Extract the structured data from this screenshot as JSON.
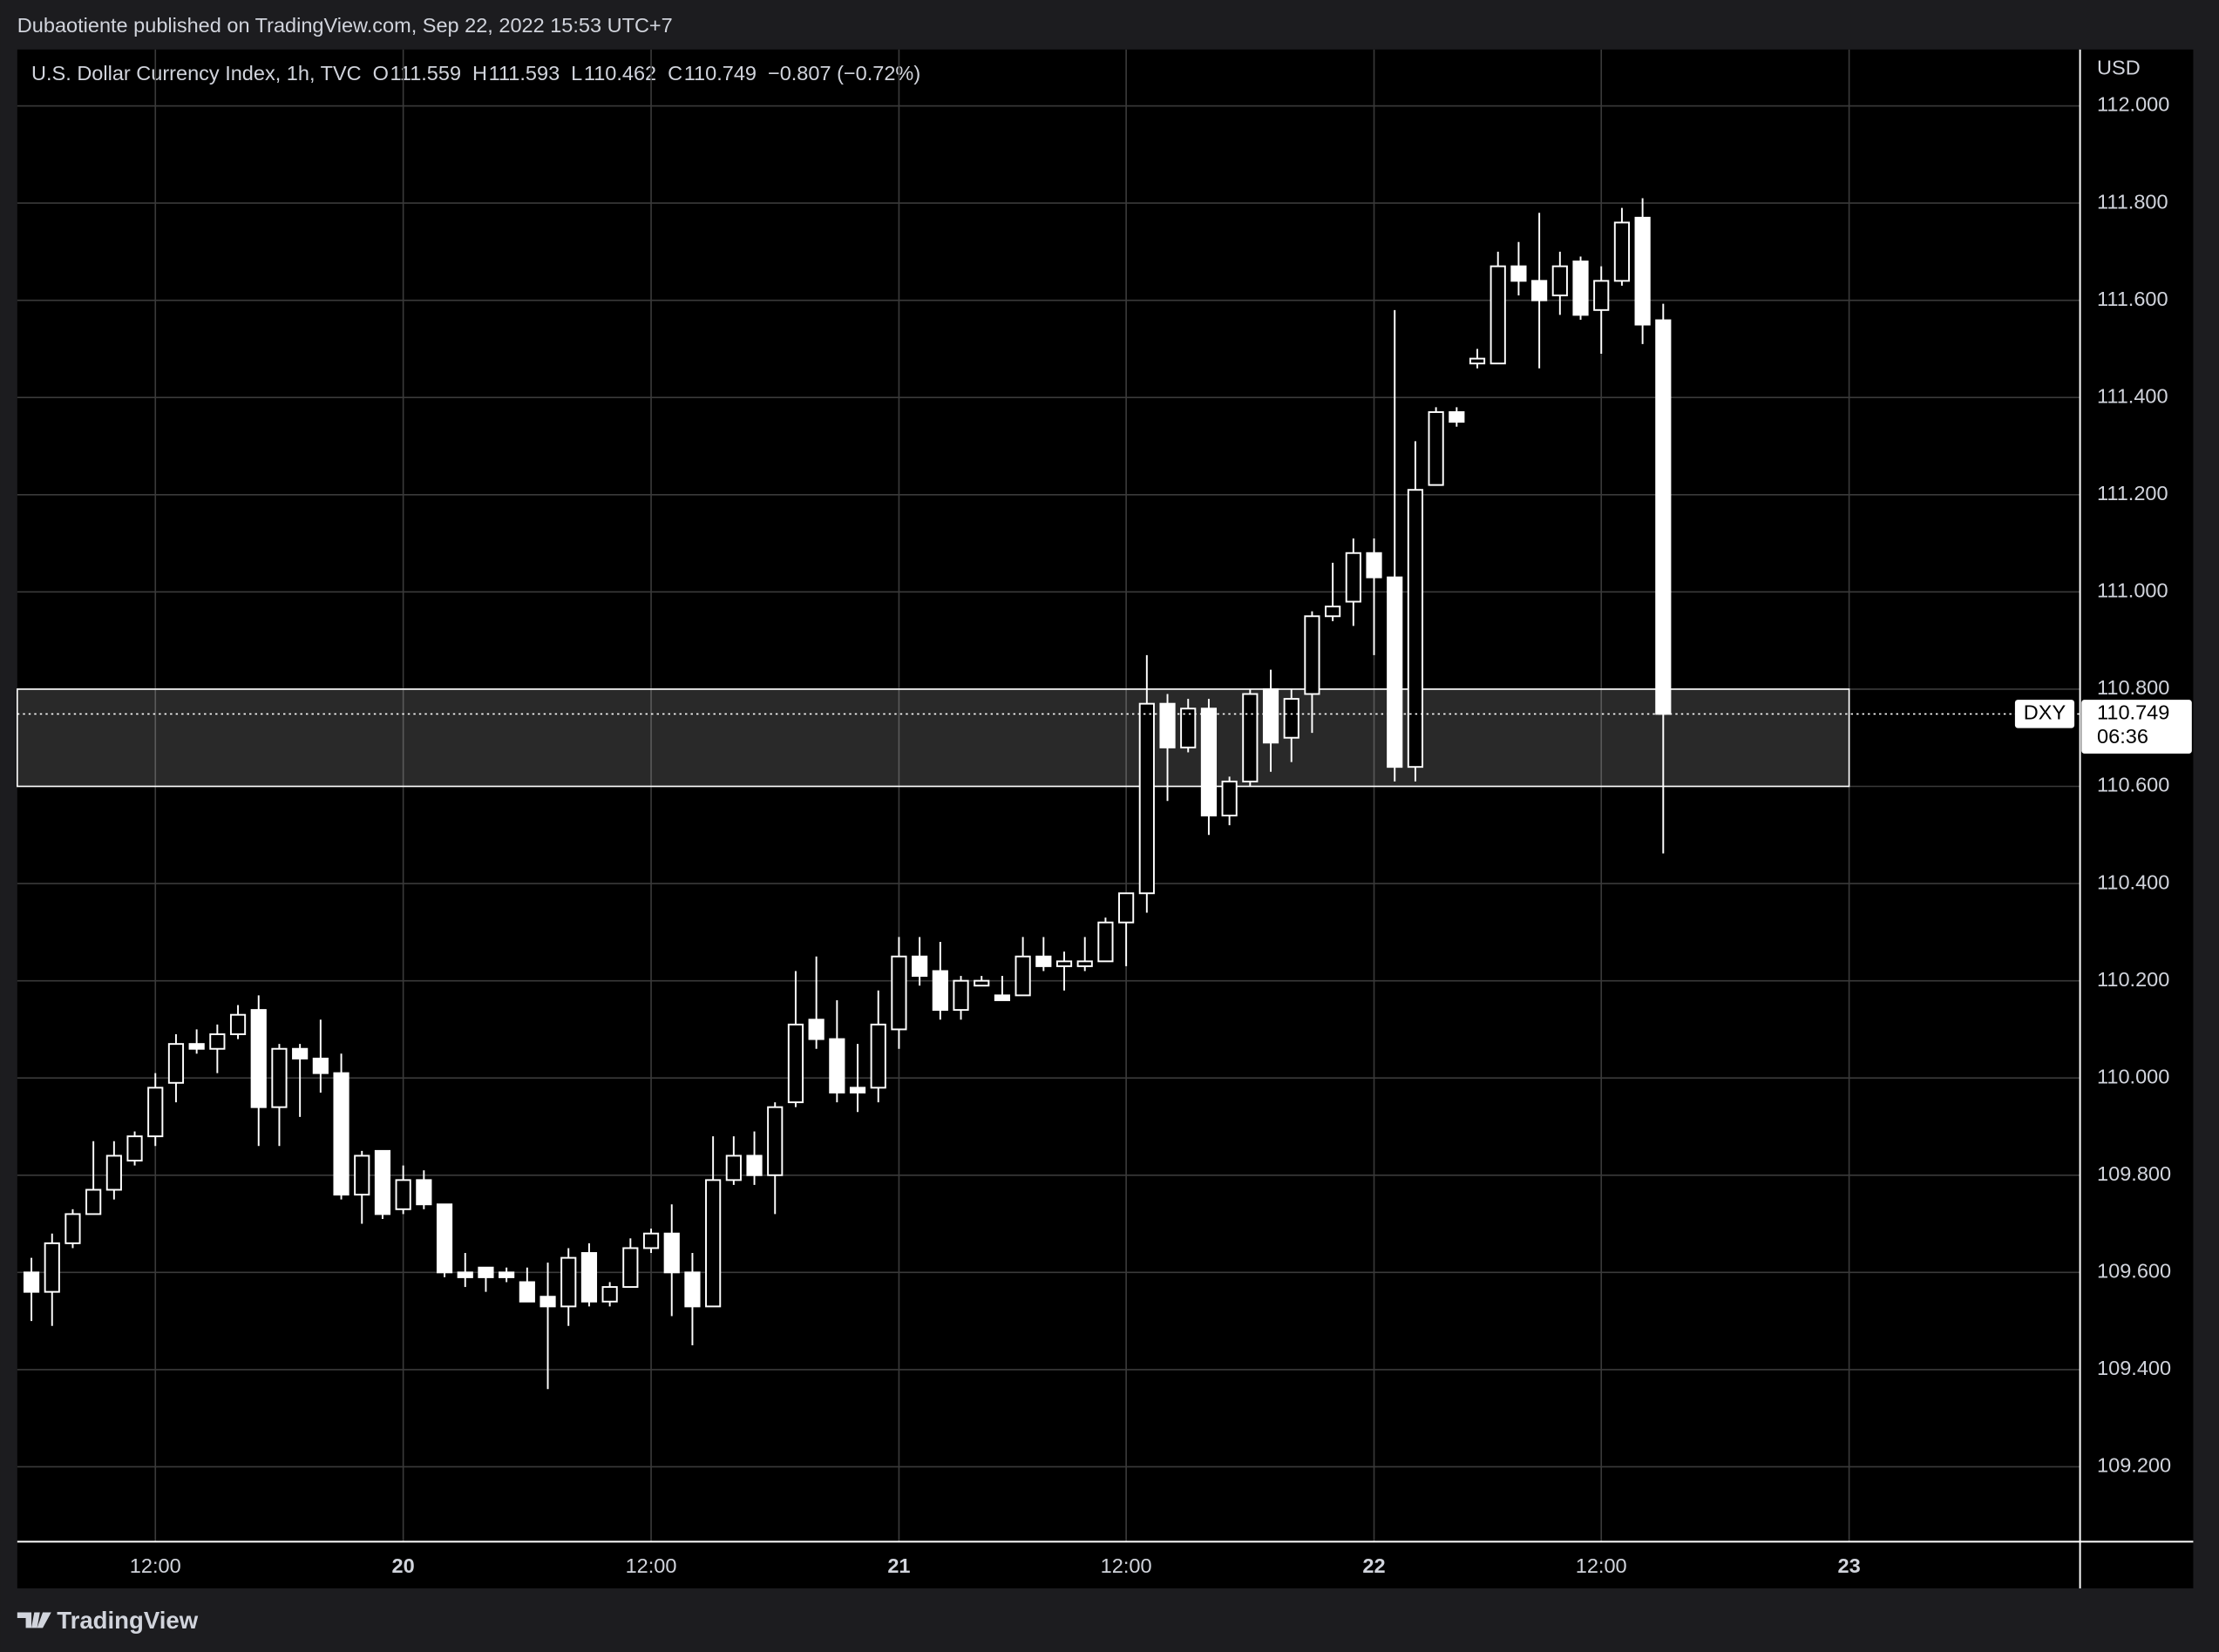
{
  "header": "Dubaotiente published on TradingView.com, Sep 22, 2022 15:53 UTC+7",
  "footer": "TradingView",
  "chart_data": {
    "type": "candlestick",
    "title": "U.S. Dollar Currency Index, 1h, TVC",
    "ohlc_legend": [
      {
        "key": "O",
        "value": "111.559"
      },
      {
        "key": "H",
        "value": "111.593"
      },
      {
        "key": "L",
        "value": "110.462"
      },
      {
        "key": "C",
        "value": "110.749"
      }
    ],
    "change": "−0.807 (−0.72%)",
    "currency": "USD",
    "color": "#ffffff",
    "background": "#000000",
    "grid": true,
    "open": [
      109.6,
      109.56,
      109.66,
      109.72,
      109.77,
      109.83,
      109.88,
      109.99,
      110.07,
      110.06,
      110.09,
      110.14,
      109.94,
      110.06,
      110.04,
      110.01,
      109.76,
      109.85,
      109.73,
      109.79,
      109.74,
      109.6,
      109.61,
      109.6,
      109.58,
      109.55,
      109.53,
      109.64,
      109.54,
      109.57,
      109.65,
      109.68,
      109.6,
      109.53,
      109.79,
      109.84,
      109.8,
      109.95,
      110.12,
      110.08,
      109.98,
      109.98,
      110.1,
      110.25,
      110.22,
      110.14,
      110.19,
      110.17,
      110.17,
      110.25,
      110.23,
      110.23,
      110.24,
      110.32,
      110.38,
      110.77,
      110.68,
      110.76,
      110.54,
      110.61,
      110.8,
      110.7,
      110.79,
      110.95,
      110.98,
      111.08,
      111.03,
      110.64,
      111.22,
      111.37,
      111.47,
      111.47,
      111.67,
      111.64,
      111.61,
      111.68,
      111.58,
      111.64,
      111.77,
      111.559
    ],
    "high": [
      109.63,
      109.68,
      109.73,
      109.87,
      109.87,
      109.89,
      110.01,
      110.09,
      110.1,
      110.11,
      110.15,
      110.17,
      110.07,
      110.07,
      110.12,
      110.05,
      109.85,
      109.85,
      109.82,
      109.81,
      109.74,
      109.64,
      109.61,
      109.61,
      109.61,
      109.62,
      109.65,
      109.66,
      109.58,
      109.67,
      109.69,
      109.74,
      109.64,
      109.88,
      109.88,
      109.89,
      109.95,
      110.22,
      110.25,
      110.16,
      110.07,
      110.18,
      110.29,
      110.29,
      110.28,
      110.21,
      110.21,
      110.21,
      110.29,
      110.29,
      110.26,
      110.29,
      110.33,
      110.38,
      110.87,
      110.79,
      110.78,
      110.78,
      110.62,
      110.8,
      110.84,
      110.8,
      110.96,
      111.06,
      111.11,
      111.11,
      111.58,
      111.31,
      111.38,
      111.38,
      111.5,
      111.7,
      111.72,
      111.78,
      111.7,
      111.69,
      111.67,
      111.79,
      111.81,
      111.593
    ],
    "low": [
      109.5,
      109.49,
      109.65,
      109.72,
      109.75,
      109.82,
      109.86,
      109.95,
      110.05,
      110.01,
      110.08,
      109.86,
      109.86,
      109.92,
      109.97,
      109.75,
      109.7,
      109.71,
      109.72,
      109.73,
      109.59,
      109.57,
      109.56,
      109.58,
      109.54,
      109.36,
      109.49,
      109.53,
      109.53,
      109.57,
      109.64,
      109.51,
      109.45,
      109.53,
      109.78,
      109.78,
      109.72,
      109.94,
      110.06,
      109.95,
      109.93,
      109.95,
      110.06,
      110.19,
      110.12,
      110.12,
      110.19,
      110.16,
      110.17,
      110.22,
      110.18,
      110.22,
      110.24,
      110.23,
      110.34,
      110.57,
      110.67,
      110.5,
      110.52,
      110.6,
      110.63,
      110.65,
      110.71,
      110.94,
      110.93,
      110.87,
      110.61,
      110.61,
      111.22,
      111.34,
      111.46,
      111.47,
      111.61,
      111.46,
      111.57,
      111.56,
      111.49,
      111.63,
      111.51,
      110.462
    ],
    "close": [
      109.56,
      109.66,
      109.72,
      109.77,
      109.84,
      109.88,
      109.98,
      110.07,
      110.06,
      110.09,
      110.13,
      109.94,
      110.06,
      110.04,
      110.01,
      109.76,
      109.84,
      109.72,
      109.79,
      109.74,
      109.6,
      109.59,
      109.59,
      109.59,
      109.54,
      109.53,
      109.63,
      109.54,
      109.57,
      109.65,
      109.68,
      109.6,
      109.53,
      109.79,
      109.84,
      109.8,
      109.94,
      110.11,
      110.08,
      109.97,
      109.97,
      110.11,
      110.25,
      110.21,
      110.14,
      110.2,
      110.2,
      110.16,
      110.25,
      110.23,
      110.24,
      110.24,
      110.32,
      110.38,
      110.77,
      110.68,
      110.76,
      110.54,
      110.61,
      110.79,
      110.69,
      110.78,
      110.95,
      110.97,
      111.08,
      111.03,
      110.64,
      111.21,
      111.37,
      111.35,
      111.48,
      111.67,
      111.64,
      111.6,
      111.67,
      111.57,
      111.64,
      111.76,
      111.55,
      110.749
    ],
    "xlim": [
      -0.685,
      99.18
    ],
    "xticks": [
      {
        "value": 6,
        "label": "12:00"
      },
      {
        "value": 18,
        "label": "20"
      },
      {
        "value": 30,
        "label": "12:00"
      },
      {
        "value": 42,
        "label": "21"
      },
      {
        "value": 53,
        "label": "12:00"
      },
      {
        "value": 65,
        "label": "22"
      },
      {
        "value": 76,
        "label": "12:00"
      },
      {
        "value": 88,
        "label": "23"
      }
    ],
    "ylim": [
      109.046,
      112.116
    ],
    "yticks": [
      {
        "value": 109.2,
        "label": "109.200"
      },
      {
        "value": 109.4,
        "label": "109.400"
      },
      {
        "value": 109.6,
        "label": "109.600"
      },
      {
        "value": 109.8,
        "label": "109.800"
      },
      {
        "value": 110,
        "label": "110.000"
      },
      {
        "value": 110.2,
        "label": "110.200"
      },
      {
        "value": 110.4,
        "label": "110.400"
      },
      {
        "value": 110.6,
        "label": "110.600"
      },
      {
        "value": 110.8,
        "label": "110.800"
      },
      {
        "value": 111,
        "label": "111.000"
      },
      {
        "value": 111.2,
        "label": "111.200"
      },
      {
        "value": 111.4,
        "label": "111.400"
      },
      {
        "value": 111.6,
        "label": "111.600"
      },
      {
        "value": 111.8,
        "label": "111.800"
      },
      {
        "value": 112,
        "label": "112.000"
      }
    ],
    "zone": {
      "low": 110.6,
      "high": 110.8
    },
    "last_price": {
      "value": 110.749,
      "label": "110.749",
      "symbol": "DXY",
      "countdown": "06:36"
    }
  }
}
